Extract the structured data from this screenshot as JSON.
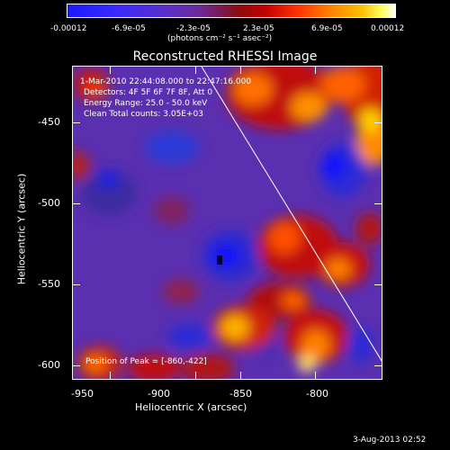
{
  "colorbar": {
    "ticks": [
      "-0.00012",
      "-6.9e-05",
      "-2.3e-05",
      "2.3e-05",
      "6.9e-05",
      "0.00012"
    ],
    "unit": "(photons cm⁻² s⁻¹ asec⁻²)"
  },
  "title": "Reconstructed RHESSI Image",
  "info": {
    "time": "1-Mar-2010 22:44:08.000 to 22:47:16.000",
    "detectors": "Detectors: 4F 5F 6F 7F 8F, Att 0",
    "energy": "Energy Range: 25.0 - 50.0 keV",
    "clean": "Clean    Total counts: 3.05E+03"
  },
  "peak": "Position of Peak = [-860,-422]",
  "axes": {
    "xlabel": "Heliocentric X (arcsec)",
    "ylabel": "Heliocentric Y (arcsec)",
    "xticks": [
      "-950",
      "-900",
      "-850",
      "-800"
    ],
    "yticks": [
      "-450",
      "-500",
      "-550",
      "-600"
    ]
  },
  "date": "3-Aug-2013 02:52"
}
